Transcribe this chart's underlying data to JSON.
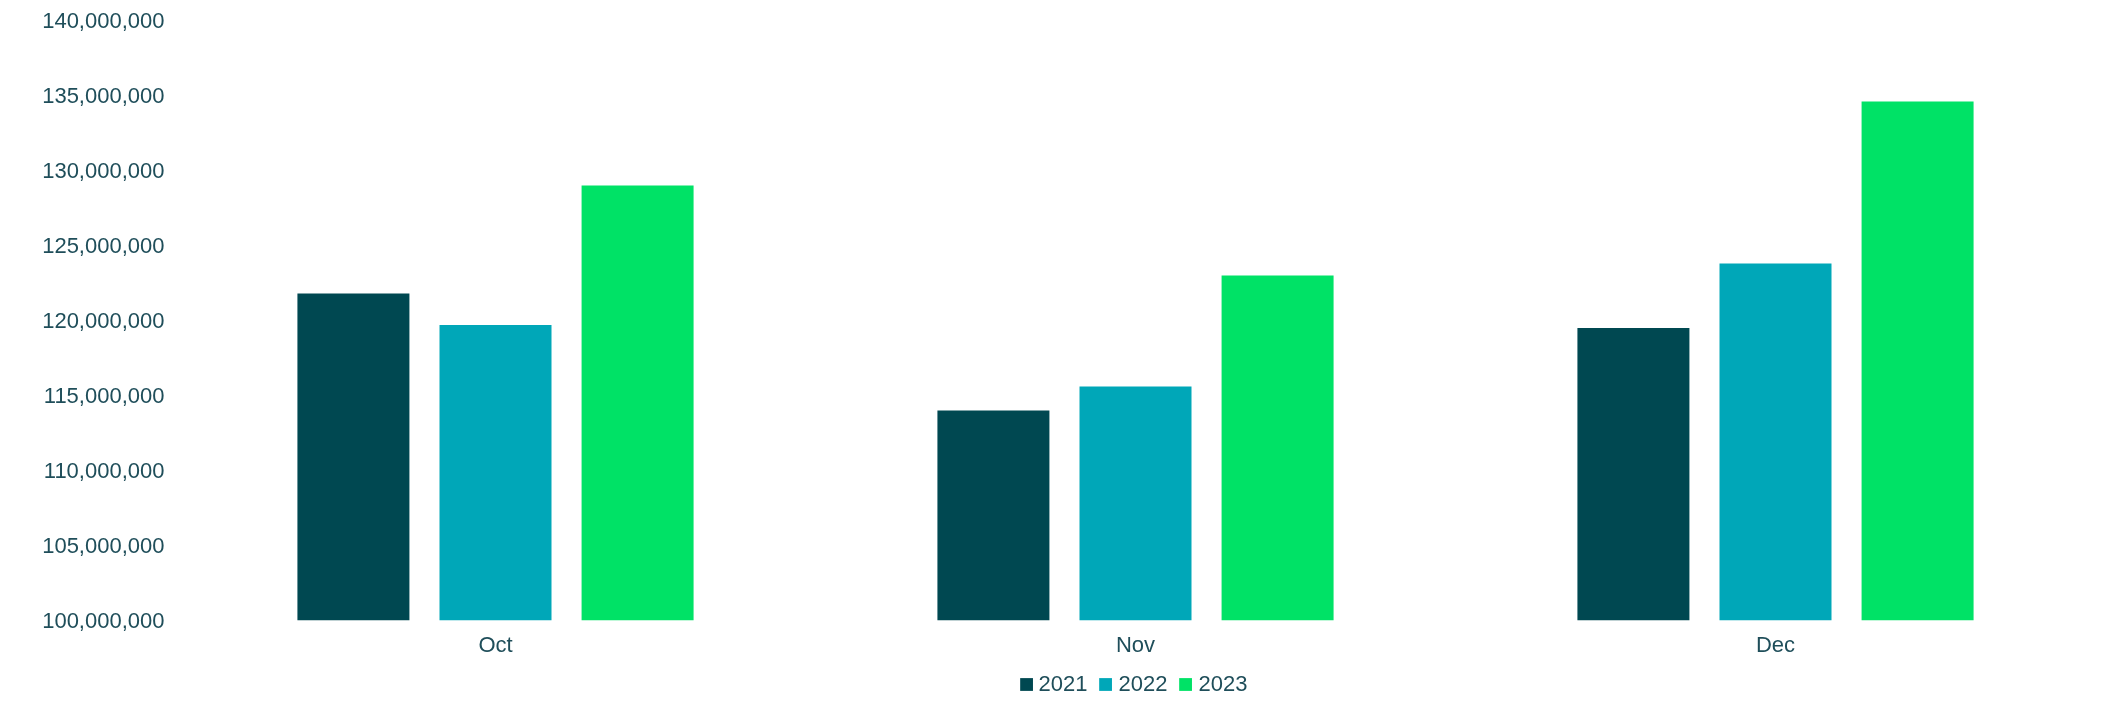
{
  "chart_data": {
    "type": "bar",
    "categories": [
      "Oct",
      "Nov",
      "Dec"
    ],
    "series": [
      {
        "name": "2021",
        "color": "#004851",
        "values": [
          121800000,
          114000000,
          119500000
        ]
      },
      {
        "name": "2022",
        "color": "#00a7b8",
        "values": [
          119700000,
          115600000,
          123800000
        ]
      },
      {
        "name": "2023",
        "color": "#00e266",
        "values": [
          129000000,
          123000000,
          134600000
        ]
      }
    ],
    "ylim": [
      100000000,
      140000000
    ],
    "yticks": [
      {
        "value": 100000000,
        "label": "100,000,000"
      },
      {
        "value": 105000000,
        "label": "105,000,000"
      },
      {
        "value": 110000000,
        "label": "110,000,000"
      },
      {
        "value": 115000000,
        "label": "115,000,000"
      },
      {
        "value": 120000000,
        "label": "120,000,000"
      },
      {
        "value": 125000000,
        "label": "125,000,000"
      },
      {
        "value": 130000000,
        "label": "130,000,000"
      },
      {
        "value": 135000000,
        "label": "135,000,000"
      },
      {
        "value": 140000000,
        "label": "140,000,000"
      }
    ],
    "grid": false,
    "legend": "bottom"
  }
}
